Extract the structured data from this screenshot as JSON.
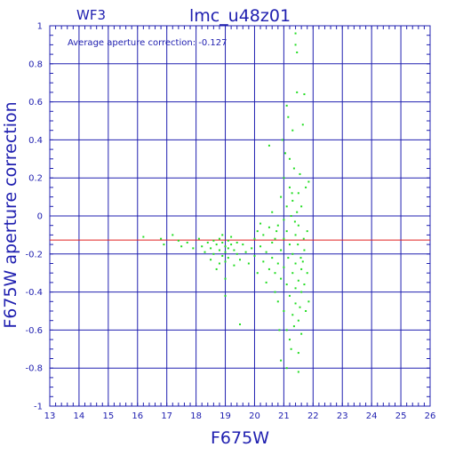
{
  "chart_data": {
    "type": "scatter",
    "panel_label": "WF3",
    "title": "lmc_u48z01",
    "annotation": "Average aperture correction: -0.127",
    "xlabel": "F675W",
    "ylabel": "F675W aperture correction",
    "xlim": [
      13,
      26
    ],
    "ylim": [
      -1,
      1
    ],
    "x_ticks": [
      "13",
      "14",
      "15",
      "16",
      "17",
      "18",
      "19",
      "20",
      "21",
      "22",
      "23",
      "24",
      "25",
      "26"
    ],
    "y_ticks": [
      "-1",
      "-0.8",
      "-0.6",
      "-0.4",
      "-0.2",
      "0",
      "0.2",
      "0.4",
      "0.6",
      "0.8",
      "1"
    ],
    "grid": true,
    "reference_line": {
      "y": -0.127,
      "color": "#e02020"
    },
    "colors": {
      "axes": "#2020b0",
      "grid": "#2020b0",
      "points": "#22dd22",
      "text": "#2020b0"
    },
    "points": [
      [
        16.2,
        -0.11
      ],
      [
        16.8,
        -0.12
      ],
      [
        16.9,
        -0.15
      ],
      [
        17.2,
        -0.1
      ],
      [
        17.4,
        -0.13
      ],
      [
        17.5,
        -0.16
      ],
      [
        17.7,
        -0.14
      ],
      [
        17.9,
        -0.17
      ],
      [
        18.1,
        -0.12
      ],
      [
        18.2,
        -0.16
      ],
      [
        18.3,
        -0.19
      ],
      [
        18.4,
        -0.14
      ],
      [
        18.5,
        -0.17
      ],
      [
        18.5,
        -0.23
      ],
      [
        18.6,
        -0.13
      ],
      [
        18.6,
        -0.2
      ],
      [
        18.7,
        -0.15
      ],
      [
        18.7,
        -0.28
      ],
      [
        18.8,
        -0.12
      ],
      [
        18.8,
        -0.18
      ],
      [
        18.8,
        -0.25
      ],
      [
        18.9,
        -0.14
      ],
      [
        18.9,
        -0.21
      ],
      [
        18.9,
        -0.1
      ],
      [
        19.0,
        -0.16
      ],
      [
        19.0,
        -0.19
      ],
      [
        19.0,
        -0.24
      ],
      [
        19.0,
        -0.42
      ],
      [
        19.0,
        -0.33
      ],
      [
        19.1,
        -0.13
      ],
      [
        19.1,
        -0.17
      ],
      [
        19.1,
        -0.22
      ],
      [
        19.2,
        -0.15
      ],
      [
        19.2,
        -0.11
      ],
      [
        19.3,
        -0.18
      ],
      [
        19.3,
        -0.26
      ],
      [
        19.4,
        -0.14
      ],
      [
        19.4,
        -0.2
      ],
      [
        19.5,
        -0.23
      ],
      [
        19.5,
        -0.57
      ],
      [
        19.6,
        -0.15
      ],
      [
        19.7,
        -0.19
      ],
      [
        19.8,
        -0.25
      ],
      [
        19.9,
        -0.17
      ],
      [
        20.0,
        -0.12
      ],
      [
        20.0,
        -0.21
      ],
      [
        20.1,
        -0.08
      ],
      [
        20.1,
        -0.3
      ],
      [
        20.2,
        -0.16
      ],
      [
        20.2,
        -0.04
      ],
      [
        20.3,
        -0.24
      ],
      [
        20.3,
        -0.1
      ],
      [
        20.4,
        -0.19
      ],
      [
        20.4,
        -0.35
      ],
      [
        20.5,
        -0.06
      ],
      [
        20.5,
        -0.28
      ],
      [
        20.5,
        0.37
      ],
      [
        20.6,
        -0.14
      ],
      [
        20.6,
        -0.22
      ],
      [
        20.6,
        0.02
      ],
      [
        20.7,
        -0.4
      ],
      [
        20.7,
        -0.12
      ],
      [
        20.7,
        -0.3
      ],
      [
        20.8,
        -0.05
      ],
      [
        20.8,
        -0.25
      ],
      [
        20.8,
        -0.45
      ],
      [
        20.9,
        0.1
      ],
      [
        20.9,
        -0.18
      ],
      [
        20.9,
        -0.33
      ],
      [
        20.9,
        -0.76
      ],
      [
        21.0,
        -0.02
      ],
      [
        21.0,
        -0.12
      ],
      [
        21.0,
        -0.27
      ],
      [
        21.0,
        -0.5
      ],
      [
        21.0,
        0.2
      ],
      [
        21.1,
        0.05
      ],
      [
        21.1,
        -0.08
      ],
      [
        21.1,
        -0.36
      ],
      [
        21.1,
        -0.6
      ],
      [
        21.1,
        -0.8
      ],
      [
        21.1,
        0.58
      ],
      [
        21.15,
        0.52
      ],
      [
        21.2,
        0.15
      ],
      [
        21.2,
        -0.15
      ],
      [
        21.2,
        -0.42
      ],
      [
        21.2,
        -0.65
      ],
      [
        21.2,
        0.3
      ],
      [
        21.25,
        0.0
      ],
      [
        21.3,
        0.08
      ],
      [
        21.3,
        -0.2
      ],
      [
        21.3,
        -0.3
      ],
      [
        21.3,
        -0.52
      ],
      [
        21.3,
        0.45
      ],
      [
        21.35,
        0.25
      ],
      [
        21.4,
        -0.1
      ],
      [
        21.4,
        -0.25
      ],
      [
        21.4,
        -0.38
      ],
      [
        21.4,
        -0.46
      ],
      [
        21.4,
        0.96
      ],
      [
        21.4,
        0.9
      ],
      [
        21.45,
        0.86
      ],
      [
        21.45,
        0.65
      ],
      [
        21.5,
        0.12
      ],
      [
        21.5,
        -0.05
      ],
      [
        21.5,
        -0.34
      ],
      [
        21.5,
        -0.55
      ],
      [
        21.5,
        -0.72
      ],
      [
        21.5,
        -0.82
      ],
      [
        21.55,
        0.22
      ],
      [
        21.6,
        0.05
      ],
      [
        21.6,
        -0.28
      ],
      [
        21.6,
        -0.4
      ],
      [
        21.6,
        -0.62
      ],
      [
        21.65,
        0.48
      ],
      [
        21.7,
        0.64
      ],
      [
        21.7,
        -0.18
      ],
      [
        21.7,
        -0.36
      ],
      [
        21.75,
        0.15
      ],
      [
        21.8,
        -0.08
      ],
      [
        21.8,
        -0.3
      ],
      [
        21.85,
        0.18
      ],
      [
        21.85,
        -0.45
      ],
      [
        20.95,
        0.4
      ],
      [
        21.05,
        0.33
      ],
      [
        21.25,
        -0.7
      ],
      [
        21.35,
        -0.58
      ],
      [
        21.45,
        0.02
      ],
      [
        21.55,
        -0.48
      ],
      [
        21.65,
        -0.24
      ],
      [
        21.75,
        -0.5
      ],
      [
        20.85,
        -0.6
      ],
      [
        20.75,
        -0.08
      ],
      [
        21.15,
        -0.22
      ],
      [
        21.28,
        0.12
      ],
      [
        21.38,
        -0.03
      ],
      [
        21.48,
        -0.15
      ],
      [
        21.58,
        -0.22
      ],
      [
        21.68,
        -0.12
      ]
    ]
  }
}
